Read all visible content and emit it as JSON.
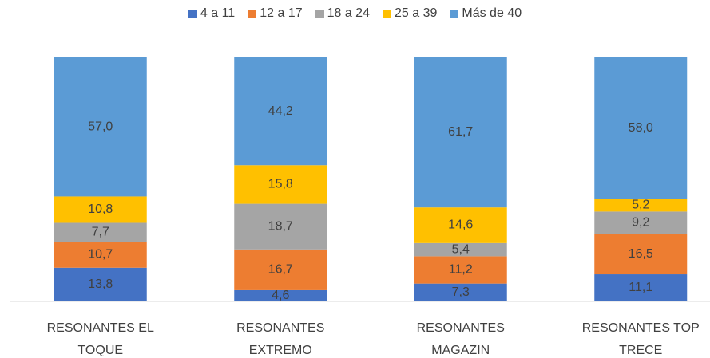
{
  "chart_data": {
    "type": "stacked_bar",
    "categories": [
      "RESONANTES EL TOQUE",
      "RESONANTES EXTREMO",
      "RESONANTES MAGAZIN",
      "RESONANTES TOP TRECE"
    ],
    "series": [
      {
        "name": "4 a 11",
        "color": "#4472c4",
        "values": [
          13.8,
          4.6,
          7.3,
          11.1
        ],
        "value_labels": [
          "13,8",
          "4,6",
          "7,3",
          "11,1"
        ]
      },
      {
        "name": "12 a 17",
        "color": "#ed7d31",
        "values": [
          10.7,
          16.7,
          11.2,
          16.5
        ],
        "value_labels": [
          "10,7",
          "16,7",
          "11,2",
          "16,5"
        ]
      },
      {
        "name": "18 a 24",
        "color": "#a5a5a5",
        "values": [
          7.7,
          18.7,
          5.4,
          9.2
        ],
        "value_labels": [
          "7,7",
          "18,7",
          "5,4",
          "9,2"
        ]
      },
      {
        "name": "25 a 39",
        "color": "#ffc000",
        "values": [
          10.8,
          15.8,
          14.6,
          5.2
        ],
        "value_labels": [
          "10,8",
          "15,8",
          "14,6",
          "5,2"
        ]
      },
      {
        "name": "Más de 40",
        "color": "#5b9bd5",
        "values": [
          57.0,
          44.2,
          61.7,
          58.0
        ],
        "value_labels": [
          "57,0",
          "44,2",
          "61,7",
          "58,0"
        ]
      }
    ],
    "ylim": [
      0,
      100
    ],
    "legend": "top"
  }
}
